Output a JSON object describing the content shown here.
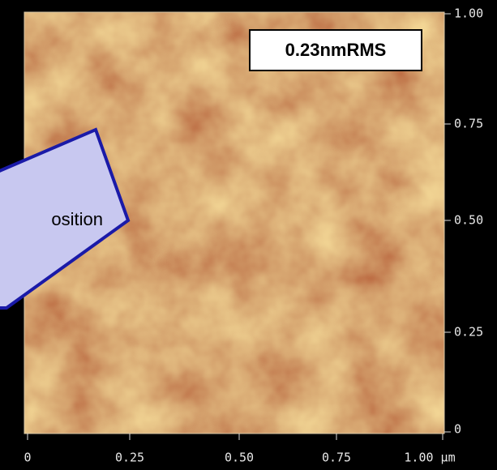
{
  "image": {
    "rms_label": "0.23nmRMS",
    "callout_text": "osition",
    "right_axis": [
      "1.00",
      "0.75",
      "0.50",
      "0.25",
      "0"
    ],
    "bottom_axis": [
      "0",
      "0.25",
      "0.50",
      "0.75",
      "1.00 µm"
    ]
  }
}
